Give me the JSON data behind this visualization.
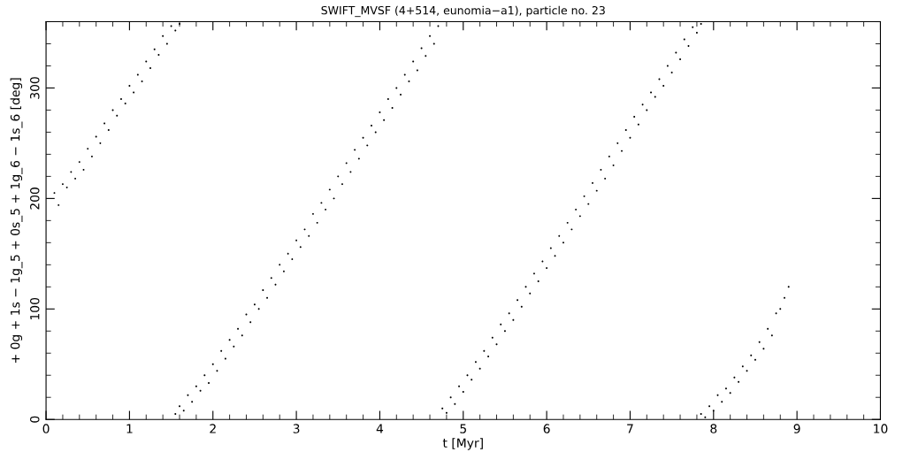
{
  "chart_data": {
    "type": "scatter",
    "title": "SWIFT_MVSF (4+514, eunomia−a1), particle no. 23",
    "xlabel": "t [Myr]",
    "ylabel": "+ 0g + 1s − 1g_5 + 0s_5 + 1g_6 − 1s_6 [deg]",
    "xlim": [
      0,
      10
    ],
    "ylim": [
      0,
      360
    ],
    "xticks": [
      0,
      1,
      2,
      3,
      4,
      5,
      6,
      7,
      8,
      9,
      10
    ],
    "yticks": [
      0,
      100,
      200,
      300
    ],
    "grid": false,
    "marker": "circle",
    "series": [
      {
        "color": "#000000",
        "x": [
          0.1,
          0.15,
          0.2,
          0.25,
          0.3,
          0.35,
          0.4,
          0.45,
          0.5,
          0.55,
          0.6,
          0.65,
          0.7,
          0.75,
          0.8,
          0.85,
          0.9,
          0.95,
          1.0,
          1.05,
          1.1,
          1.15,
          1.2,
          1.25,
          1.3,
          1.35,
          1.4,
          1.45,
          1.5,
          1.55,
          1.6,
          1.55,
          1.6,
          1.65,
          1.7,
          1.75,
          1.8,
          1.85,
          1.9,
          1.95,
          2.0,
          2.05,
          2.1,
          2.15,
          2.2,
          2.25,
          2.3,
          2.35,
          2.4,
          2.45,
          2.5,
          2.55,
          2.6,
          2.65,
          2.7,
          2.75,
          2.8,
          2.85,
          2.9,
          2.95,
          3.0,
          3.05,
          3.1,
          3.15,
          3.2,
          3.25,
          3.3,
          3.35,
          3.4,
          3.45,
          3.5,
          3.55,
          3.6,
          3.65,
          3.7,
          3.75,
          3.8,
          3.85,
          3.9,
          3.95,
          4.0,
          4.05,
          4.1,
          4.15,
          4.2,
          4.25,
          4.3,
          4.35,
          4.4,
          4.45,
          4.5,
          4.55,
          4.6,
          4.65,
          4.7,
          4.75,
          4.8,
          4.85,
          4.9,
          4.95,
          5.0,
          5.05,
          5.1,
          5.15,
          5.2,
          5.25,
          5.3,
          5.35,
          5.4,
          5.45,
          5.5,
          5.55,
          5.6,
          5.65,
          5.7,
          5.75,
          5.8,
          5.85,
          5.9,
          5.95,
          6.0,
          6.05,
          6.1,
          6.15,
          6.2,
          6.25,
          6.3,
          6.35,
          6.4,
          6.45,
          6.5,
          6.55,
          6.6,
          6.65,
          6.7,
          6.75,
          6.8,
          6.85,
          6.9,
          6.95,
          7.0,
          7.05,
          7.1,
          7.15,
          7.2,
          7.25,
          7.3,
          7.35,
          7.4,
          7.45,
          7.5,
          7.55,
          7.6,
          7.65,
          7.7,
          7.75,
          7.8,
          7.85,
          7.85,
          7.9,
          7.95,
          8.0,
          8.05,
          8.1,
          8.15,
          8.2,
          8.25,
          8.3,
          8.35,
          8.4,
          8.45,
          8.5,
          8.55,
          8.6,
          8.65,
          8.7,
          8.75,
          8.8,
          8.85,
          8.9
        ],
        "values": [
          205,
          194,
          213,
          210,
          224,
          218,
          233,
          226,
          245,
          238,
          256,
          250,
          268,
          262,
          280,
          275,
          290,
          286,
          302,
          296,
          312,
          306,
          324,
          318,
          335,
          330,
          347,
          340,
          356,
          352,
          358,
          5,
          12,
          8,
          22,
          16,
          30,
          26,
          40,
          33,
          50,
          44,
          62,
          55,
          72,
          66,
          82,
          76,
          95,
          88,
          104,
          100,
          117,
          110,
          128,
          122,
          140,
          134,
          150,
          145,
          162,
          156,
          172,
          166,
          186,
          178,
          196,
          190,
          208,
          200,
          220,
          213,
          232,
          224,
          244,
          236,
          255,
          248,
          266,
          260,
          278,
          271,
          290,
          282,
          300,
          294,
          312,
          306,
          324,
          316,
          336,
          329,
          347,
          340,
          356,
          10,
          6,
          20,
          14,
          30,
          25,
          40,
          36,
          52,
          46,
          62,
          57,
          74,
          68,
          86,
          80,
          96,
          90,
          108,
          102,
          120,
          114,
          132,
          125,
          143,
          137,
          155,
          148,
          166,
          160,
          178,
          172,
          190,
          184,
          202,
          195,
          214,
          207,
          226,
          218,
          238,
          230,
          250,
          243,
          262,
          255,
          274,
          267,
          285,
          280,
          296,
          292,
          308,
          302,
          320,
          314,
          332,
          326,
          344,
          338,
          355,
          350,
          358,
          5,
          2,
          12,
          8,
          22,
          16,
          28,
          24,
          38,
          34,
          48,
          44,
          58,
          54,
          70,
          64,
          82,
          76,
          96,
          100,
          110,
          120
        ]
      }
    ]
  }
}
